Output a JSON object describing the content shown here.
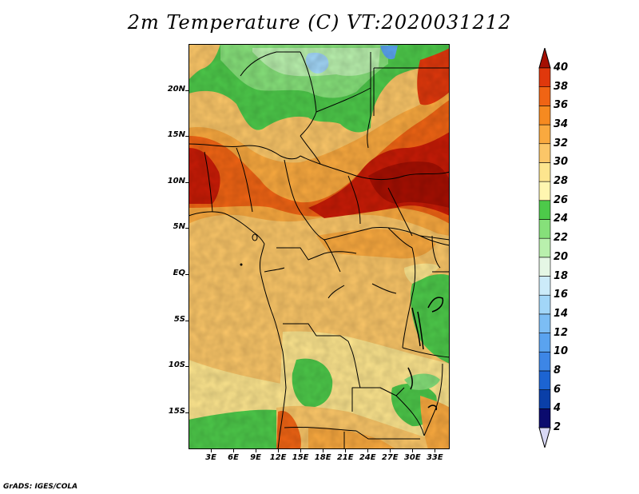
{
  "title": "2m Temperature (C) VT:2020031212",
  "footer": "GrADS: IGES/COLA",
  "colors": {
    "levels": [
      "#0b0b6e",
      "#0a3fa8",
      "#1c64d2",
      "#3d86e6",
      "#5aa3ef",
      "#7cbdf4",
      "#a2d6f8",
      "#ccebf9",
      "#e5f7e5",
      "#b9f0ad",
      "#86e07a",
      "#4dc94a",
      "#fff6b0",
      "#fde58e",
      "#fbc668",
      "#f9a93f",
      "#f68a20",
      "#f06414",
      "#e0380c",
      "#c81b06",
      "#a50f02"
    ],
    "coast": "#000000"
  },
  "chart_data": {
    "type": "heatmap",
    "title": "2m Temperature (C) VT:2020031212",
    "lon_range": [
      0,
      35
    ],
    "lat_range": [
      -19,
      25
    ],
    "x_ticks": [
      "3E",
      "6E",
      "9E",
      "12E",
      "15E",
      "18E",
      "21E",
      "24E",
      "27E",
      "30E",
      "33E"
    ],
    "y_ticks": [
      "20N",
      "15N",
      "10N",
      "5N",
      "EQ",
      "5S",
      "10S",
      "15S"
    ],
    "colorbar_levels": [
      2,
      4,
      6,
      8,
      10,
      12,
      14,
      16,
      18,
      20,
      22,
      24,
      26,
      28,
      30,
      32,
      34,
      36,
      38,
      40
    ],
    "colorbar_labels": [
      "2",
      "4",
      "6",
      "8",
      "10",
      "12",
      "14",
      "16",
      "18",
      "20",
      "22",
      "24",
      "26",
      "28",
      "30",
      "32",
      "34",
      "36",
      "38",
      "40"
    ]
  }
}
